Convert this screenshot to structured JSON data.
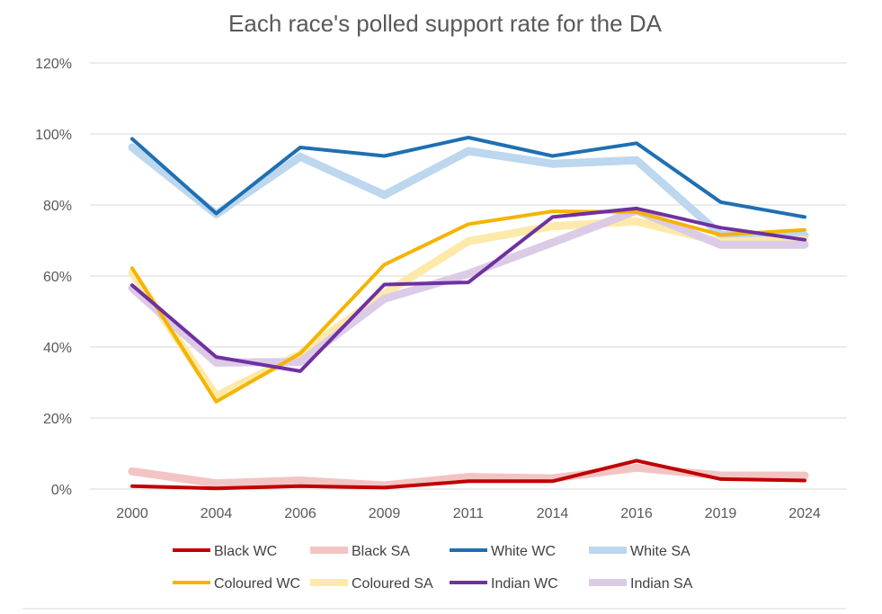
{
  "chart_data": {
    "type": "line",
    "title": "Each race's polled support rate for the DA",
    "xlabel": "",
    "ylabel": "",
    "categories": [
      "2000",
      "2004",
      "2006",
      "2009",
      "2011",
      "2014",
      "2016",
      "2019",
      "2024"
    ],
    "ylim": [
      0,
      120
    ],
    "yticks": [
      0,
      20,
      40,
      60,
      80,
      100,
      120
    ],
    "ytick_labels": [
      "0%",
      "20%",
      "40%",
      "60%",
      "80%",
      "100%",
      "120%"
    ],
    "grid": true,
    "legend_position": "bottom",
    "series": [
      {
        "name": "Black WC",
        "color": "#c00000",
        "style": "thin",
        "values": [
          0.8,
          0.2,
          0.8,
          0.4,
          2.2,
          2.2,
          8.0,
          2.8,
          2.4
        ]
      },
      {
        "name": "Black SA",
        "color": "#f2c4c4",
        "style": "thick",
        "values": [
          5.0,
          1.6,
          2.4,
          1.0,
          3.4,
          3.0,
          6.0,
          3.8,
          3.8
        ]
      },
      {
        "name": "White WC",
        "color": "#1f6fb2",
        "style": "thin",
        "values": [
          98.6,
          77.6,
          96.2,
          93.8,
          99.0,
          93.8,
          97.4,
          80.8,
          76.6
        ]
      },
      {
        "name": "White SA",
        "color": "#bcd7ee",
        "style": "thick",
        "values": [
          96.2,
          77.4,
          93.6,
          82.8,
          95.2,
          91.6,
          92.6,
          71.6,
          71.4
        ]
      },
      {
        "name": "Coloured WC",
        "color": "#f4b400",
        "style": "thin",
        "values": [
          62.2,
          24.6,
          38.2,
          63.2,
          74.6,
          78.2,
          78.0,
          71.6,
          73.0
        ]
      },
      {
        "name": "Coloured SA",
        "color": "#fdeaaa",
        "style": "thick",
        "values": [
          61.0,
          26.2,
          38.0,
          55.0,
          69.8,
          74.0,
          75.4,
          69.6,
          70.2
        ]
      },
      {
        "name": "Indian WC",
        "color": "#7030a0",
        "style": "thin",
        "values": [
          57.4,
          37.2,
          33.2,
          57.6,
          58.2,
          76.6,
          79.0,
          73.6,
          70.2
        ]
      },
      {
        "name": "Indian SA",
        "color": "#dccbe6",
        "style": "thick",
        "values": [
          56.6,
          35.6,
          35.8,
          53.6,
          60.6,
          69.4,
          78.4,
          68.8,
          68.8
        ]
      }
    ]
  }
}
